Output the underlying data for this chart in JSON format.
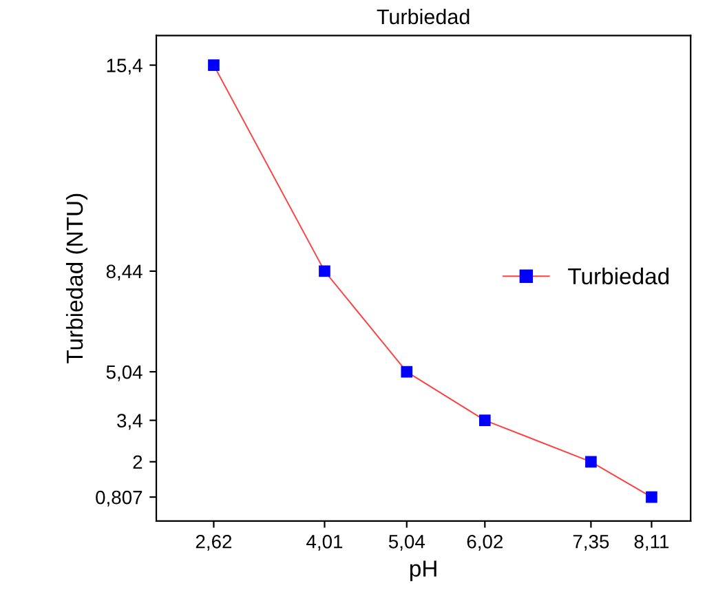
{
  "chart_data": {
    "type": "line",
    "title": "Turbiedad",
    "xlabel": "pH",
    "ylabel": "Turbiedad (NTU)",
    "x": [
      2.62,
      4.01,
      5.04,
      6.02,
      7.35,
      8.11
    ],
    "series": [
      {
        "name": "Turbiedad",
        "color": "#ff4040",
        "colors": [
          "#0000ff",
          "#0000ff",
          "#0000ff",
          "#0000ff",
          "#0000ff",
          "#0000ff"
        ],
        "values": [
          15.4,
          8.44,
          5.04,
          3.4,
          2,
          0.807
        ]
      }
    ],
    "xlim": [
      1.9,
      8.6
    ],
    "ylim": [
      0,
      16.4
    ],
    "xticks": [
      {
        "value": 2.62,
        "label": "2,62"
      },
      {
        "value": 4.01,
        "label": "4,01"
      },
      {
        "value": 5.04,
        "label": "5,04"
      },
      {
        "value": 6.02,
        "label": "6,02"
      },
      {
        "value": 7.35,
        "label": "7,35"
      },
      {
        "value": 8.11,
        "label": "8,11"
      }
    ],
    "yticks": [
      {
        "value": 0.807,
        "label": "0,807"
      },
      {
        "value": 2,
        "label": "2"
      },
      {
        "value": 3.4,
        "label": "3,4"
      },
      {
        "value": 5.04,
        "label": "5,04"
      },
      {
        "value": 8.44,
        "label": "8,44"
      },
      {
        "value": 15.4,
        "label": "15,4"
      }
    ],
    "marker": "square",
    "line_style": "solid",
    "grid": false,
    "legend": "right"
  }
}
